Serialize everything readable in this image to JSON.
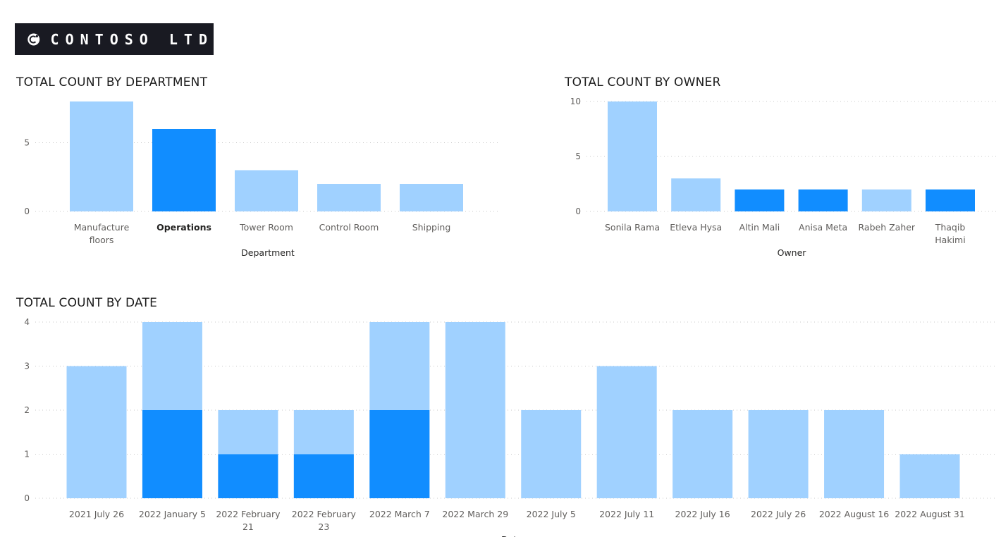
{
  "logo": {
    "text": "CONTOSO LTD",
    "icon": "contoso-logo-icon"
  },
  "colors": {
    "light": "#a0d1ff",
    "dark": "#118dff",
    "grid": "#c8c8c8",
    "tick": "#605e5c",
    "axis_title": "#252423"
  },
  "chart_data": [
    {
      "type": "bar",
      "title": "TOTAL COUNT BY DEPARTMENT",
      "xlabel": "Department",
      "ylabel": "",
      "categories": [
        "Manufacture floors",
        "Operations",
        "Tower Room",
        "Control Room",
        "Shipping"
      ],
      "values": [
        8,
        6,
        3,
        2,
        2
      ],
      "highlight": [
        false,
        true,
        false,
        false,
        false
      ],
      "selected_category": "Operations",
      "ylim": [
        0,
        8
      ],
      "yticks": [
        0,
        5
      ],
      "grid": true
    },
    {
      "type": "bar",
      "title": "TOTAL COUNT BY OWNER",
      "xlabel": "Owner",
      "ylabel": "",
      "categories": [
        "Sonila Rama",
        "Etleva Hysa",
        "Altin Mali",
        "Anisa Meta",
        "Rabeh Zaher",
        "Thaqib Hakimi"
      ],
      "values": [
        10,
        3,
        2,
        2,
        2,
        2
      ],
      "highlight": [
        false,
        false,
        true,
        true,
        false,
        true
      ],
      "ylim": [
        0,
        10
      ],
      "yticks": [
        0,
        5,
        10
      ],
      "grid": true
    },
    {
      "type": "bar",
      "title": "TOTAL COUNT BY DATE",
      "xlabel": "Date",
      "ylabel": "",
      "categories": [
        "2021 July 26",
        "2022 January 5",
        "2022 February 21",
        "2022 February 23",
        "2022 March 7",
        "2022 March 29",
        "2022 July 5",
        "2022 July 11",
        "2022 July 16",
        "2022 July 26",
        "2022 August 16",
        "2022 August 31"
      ],
      "values": [
        3,
        4,
        2,
        2,
        4,
        4,
        2,
        3,
        2,
        2,
        2,
        1
      ],
      "highlighted_values": [
        0,
        2,
        1,
        1,
        2,
        0,
        0,
        0,
        0,
        0,
        0,
        0
      ],
      "ylim": [
        0,
        4
      ],
      "yticks": [
        0,
        1,
        2,
        3,
        4
      ],
      "grid": true
    }
  ]
}
